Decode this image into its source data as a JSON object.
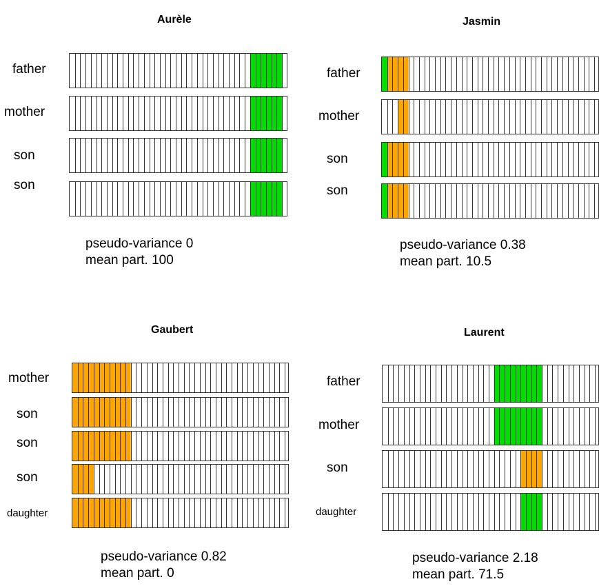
{
  "colors": {
    "orange": "#ffa500",
    "green": "#00dd00",
    "grid": "#333333"
  },
  "panels": [
    {
      "title": "Aurèle",
      "rows": [
        {
          "label": "father",
          "cells": 40,
          "fill_start": 34,
          "fill_end": 40,
          "colors": [
            "green"
          ]
        },
        {
          "label": "mother",
          "cells": 40,
          "fill_start": 34,
          "fill_end": 40,
          "colors": [
            "green"
          ]
        },
        {
          "label": "son",
          "cells": 40,
          "fill_start": 34,
          "fill_end": 40,
          "colors": [
            "green"
          ]
        },
        {
          "label": "son",
          "cells": 40,
          "fill_start": 34,
          "fill_end": 40,
          "colors": [
            "green"
          ]
        }
      ],
      "stat_label_1": "pseudo-variance",
      "stat_value_1": "0",
      "stat_label_2": "mean part.",
      "stat_value_2": "100"
    },
    {
      "title": "Jasmin",
      "rows": [
        {
          "label": "father",
          "segments": [
            [
              "green",
              0,
              1
            ],
            [
              "orange",
              1,
              5
            ]
          ]
        },
        {
          "label": "mother",
          "segments": [
            [
              "orange",
              3,
              5
            ]
          ]
        },
        {
          "label": "son",
          "segments": [
            [
              "green",
              0,
              1
            ],
            [
              "orange",
              1,
              5
            ]
          ]
        },
        {
          "label": "son",
          "segments": [
            [
              "green",
              0,
              1
            ],
            [
              "orange",
              1,
              5
            ]
          ]
        }
      ],
      "stat_label_1": "pseudo-variance",
      "stat_value_1": "0.38",
      "stat_label_2": "mean part.",
      "stat_value_2": "10.5"
    },
    {
      "title": "Gaubert",
      "rows": [
        {
          "label": "mother",
          "segments": [
            [
              "orange",
              0,
              11
            ]
          ]
        },
        {
          "label": "son",
          "segments": [
            [
              "orange",
              0,
              11
            ]
          ]
        },
        {
          "label": "son",
          "segments": [
            [
              "orange",
              0,
              11
            ]
          ]
        },
        {
          "label": "son",
          "segments": [
            [
              "orange",
              0,
              4
            ]
          ]
        },
        {
          "label": "daughter",
          "segments": [
            [
              "orange",
              0,
              11
            ]
          ]
        }
      ],
      "stat_label_1": "pseudo-variance",
      "stat_value_1": "0.82",
      "stat_label_2": "mean part.",
      "stat_value_2": "0"
    },
    {
      "title": "Laurent",
      "rows": [
        {
          "label": "father",
          "segments": [
            [
              "green",
              21,
              30
            ]
          ]
        },
        {
          "label": "mother",
          "segments": [
            [
              "green",
              21,
              30
            ]
          ]
        },
        {
          "label": "son",
          "segments": [
            [
              "orange",
              26,
              30
            ]
          ]
        },
        {
          "label": "daughter",
          "segments": [
            [
              "green",
              26,
              30
            ]
          ]
        }
      ],
      "stat_label_1": "pseudo-variance",
      "stat_value_1": "2.18",
      "stat_label_2": "mean part.",
      "stat_value_2": "71.5"
    }
  ]
}
